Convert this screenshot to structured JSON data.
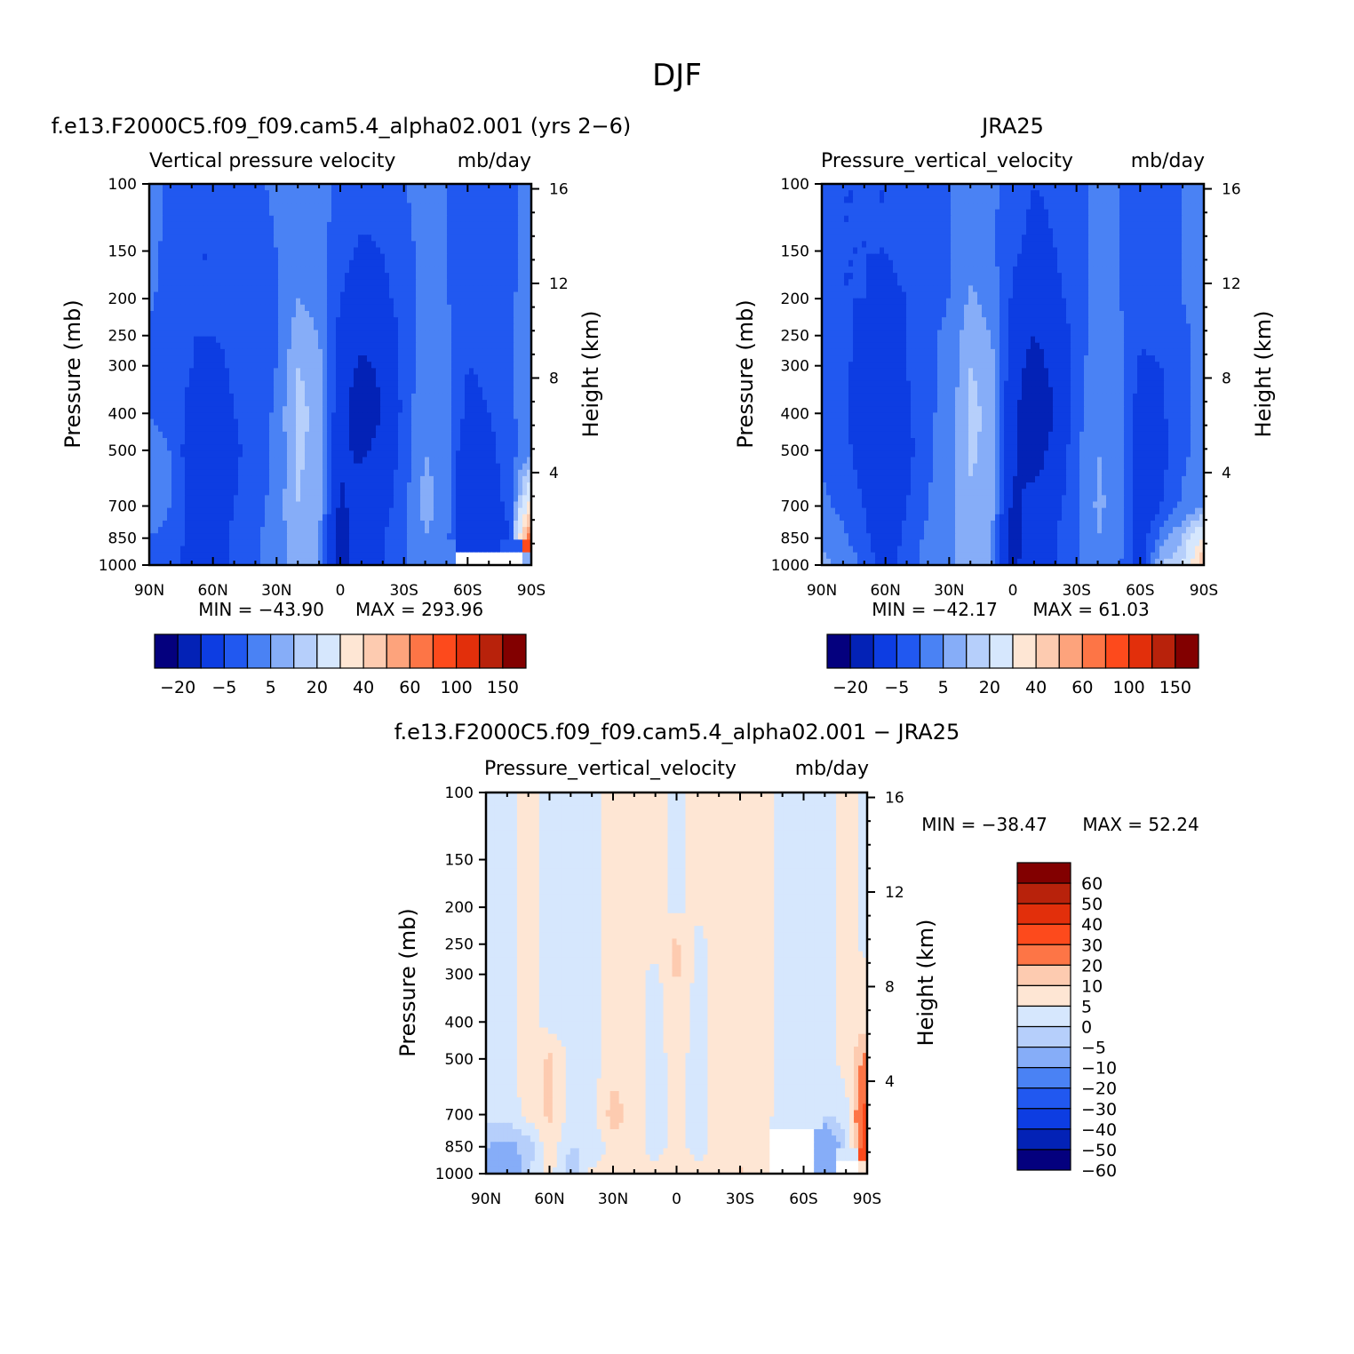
{
  "figure": {
    "title": "DJF"
  },
  "colors": {
    "abs_palette": [
      "#04007e",
      "#0322b6",
      "#0d3de2",
      "#2158f0",
      "#4a82f4",
      "#86adf8",
      "#b6cffb",
      "#d6e7fd",
      "#fee6d4",
      "#fdcbb0",
      "#fda37c",
      "#fd7546",
      "#fd4a1c",
      "#e22f0b",
      "#b8220b",
      "#820000"
    ],
    "diff_palette": [
      "#04007e",
      "#0322b6",
      "#0d3de2",
      "#2158f0",
      "#4a82f4",
      "#86adf8",
      "#b6cffb",
      "#d6e7fd",
      "#fee6d4",
      "#fdcbb0",
      "#fd7546",
      "#fd4a1c",
      "#e22f0b",
      "#b8220b",
      "#820000"
    ],
    "missing": "#ffffff"
  },
  "chart_data": [
    {
      "type": "heatmap",
      "case_title": "f.e13.F2000C5.f09_f09.cam5.4_alpha02.001 (yrs 2−6)",
      "title": "Vertical pressure velocity",
      "units": "mb/day",
      "ylabel": "Pressure (mb)",
      "ylabel_right": "Height (km)",
      "xticks": [
        "90N",
        "60N",
        "30N",
        "0",
        "30S",
        "60S",
        "90S"
      ],
      "yticks": [
        "100",
        "150",
        "200",
        "250",
        "300",
        "400",
        "500",
        "700",
        "850",
        "1000"
      ],
      "yticks_right": [
        "16",
        "12",
        "8",
        "4"
      ],
      "ylim": [
        100,
        1000
      ],
      "yscale": "log",
      "min_label": "MIN = −43.90",
      "max_label": "MAX = 293.96",
      "colorbar_labels": [
        "−20",
        "−5",
        "5",
        "20",
        "40",
        "60",
        "100",
        "150"
      ],
      "lat": [
        90,
        80,
        70,
        60,
        50,
        40,
        30,
        20,
        10,
        0,
        -10,
        -20,
        -30,
        -40,
        -50,
        -60,
        -70,
        -80,
        -90
      ],
      "lev": [
        100,
        150,
        200,
        250,
        300,
        400,
        500,
        700,
        850,
        1000
      ],
      "field": [
        [
          0,
          -8,
          -10,
          -9,
          -7,
          -6,
          -4,
          -3,
          -3,
          -6,
          -8,
          -7,
          -5,
          -4,
          -5,
          -7,
          -8,
          -6,
          -3
        ],
        [
          -2,
          -8,
          -10,
          -10,
          -9,
          -7,
          -5,
          -3,
          -3,
          -8,
          -11,
          -10,
          -6,
          -4,
          -5,
          -6,
          -8,
          -7,
          -2
        ],
        [
          -4,
          -8,
          -10,
          -10,
          -10,
          -8,
          -6,
          0,
          -2,
          -10,
          -14,
          -12,
          -7,
          -4,
          -5,
          -6,
          -7,
          -6,
          -2
        ],
        [
          -6,
          -8,
          -10,
          -10,
          -9,
          -8,
          -6,
          3,
          0,
          -12,
          -18,
          -16,
          -8,
          -3,
          -4,
          -8,
          -8,
          -6,
          -2
        ],
        [
          -5,
          -7,
          -10,
          -12,
          -9,
          -7,
          -5,
          5,
          2,
          -14,
          -22,
          -18,
          -8,
          -2,
          -3,
          -10,
          -9,
          -6,
          -2
        ],
        [
          -5,
          -6,
          -12,
          -14,
          -10,
          -8,
          -4,
          7,
          3,
          -16,
          -28,
          -20,
          -8,
          -1,
          -3,
          -12,
          -10,
          -6,
          -2
        ],
        [
          -4,
          -5,
          -14,
          -15,
          -11,
          -8,
          -4,
          6,
          3,
          -18,
          -22,
          -16,
          -7,
          0,
          -3,
          -16,
          -12,
          -6,
          -4
        ],
        [
          -3,
          -5,
          -12,
          -14,
          -10,
          -7,
          -3,
          5,
          2,
          -22,
          -15,
          -12,
          -7,
          2,
          -2,
          -18,
          -14,
          -8,
          25
        ],
        [
          -5,
          -6,
          -12,
          -13,
          -9,
          -6,
          -2,
          3,
          1,
          -26,
          -14,
          -10,
          -6,
          0,
          -3,
          -20,
          -16,
          -10,
          60
        ],
        [
          -8,
          -8,
          -14,
          -12,
          -9,
          -6,
          -3,
          2,
          0,
          -24,
          -12,
          -10,
          -6,
          -2,
          -4,
          null,
          null,
          null,
          0
        ]
      ]
    },
    {
      "type": "heatmap",
      "case_title": "JRA25",
      "title": "Pressure_vertical_velocity",
      "units": "mb/day",
      "ylabel": "Pressure (mb)",
      "ylabel_right": "Height (km)",
      "xticks": [
        "90N",
        "60N",
        "30N",
        "0",
        "30S",
        "60S",
        "90S"
      ],
      "yticks": [
        "100",
        "150",
        "200",
        "250",
        "300",
        "400",
        "500",
        "700",
        "850",
        "1000"
      ],
      "yticks_right": [
        "16",
        "12",
        "8",
        "4"
      ],
      "ylim": [
        100,
        1000
      ],
      "yscale": "log",
      "min_label": "MIN = −42.17",
      "max_label": "MAX =   61.03",
      "colorbar_labels": [
        "−20",
        "−5",
        "5",
        "20",
        "40",
        "60",
        "100",
        "150"
      ],
      "lat": [
        90,
        80,
        70,
        60,
        50,
        40,
        30,
        20,
        10,
        0,
        -10,
        -20,
        -30,
        -40,
        -50,
        -60,
        -70,
        -80,
        -90
      ],
      "lev": [
        100,
        150,
        200,
        250,
        300,
        400,
        500,
        700,
        850,
        1000
      ],
      "field": [
        [
          -8,
          -10,
          -10,
          -10,
          -8,
          -7,
          -5,
          -3,
          -4,
          -7,
          -10,
          -9,
          -6,
          -4,
          -5,
          -7,
          -8,
          -5,
          -3
        ],
        [
          -8,
          -10,
          -10,
          -10,
          -9,
          -7,
          -5,
          -2,
          -4,
          -9,
          -12,
          -10,
          -6,
          -4,
          -5,
          -7,
          -8,
          -5,
          -3
        ],
        [
          -8,
          -10,
          -10,
          -11,
          -10,
          -7,
          -5,
          1,
          -2,
          -11,
          -15,
          -12,
          -7,
          -4,
          -5,
          -7,
          -8,
          -5,
          -3
        ],
        [
          -7,
          -9,
          -11,
          -12,
          -10,
          -6,
          -4,
          3,
          0,
          -13,
          -20,
          -15,
          -8,
          -3,
          -4,
          -9,
          -9,
          -6,
          -3
        ],
        [
          -7,
          -9,
          -12,
          -14,
          -10,
          -6,
          -4,
          5,
          2,
          -15,
          -24,
          -17,
          -7,
          -2,
          -3,
          -11,
          -10,
          -6,
          -3
        ],
        [
          -7,
          -9,
          -14,
          -17,
          -11,
          -6,
          -3,
          7,
          3,
          -17,
          -30,
          -20,
          -7,
          -1,
          -3,
          -13,
          -11,
          -6,
          -3
        ],
        [
          -6,
          -8,
          -13,
          -18,
          -12,
          -6,
          -3,
          6,
          3,
          -18,
          -26,
          -16,
          -6,
          0,
          -2,
          -14,
          -12,
          -6,
          -3
        ],
        [
          -4,
          -6,
          -10,
          -18,
          -10,
          -5,
          -2,
          4,
          2,
          -22,
          -16,
          -12,
          -6,
          1,
          -2,
          -15,
          -10,
          -4,
          -2
        ],
        [
          -1,
          -4,
          -8,
          -16,
          -8,
          -4,
          -1,
          3,
          1,
          -26,
          -14,
          -10,
          -6,
          0,
          -3,
          -14,
          -3,
          5,
          20
        ],
        [
          2,
          -2,
          -6,
          -12,
          -7,
          -3,
          -1,
          2,
          0,
          -22,
          -12,
          -10,
          -6,
          -2,
          -4,
          -14,
          5,
          10,
          40
        ]
      ]
    },
    {
      "type": "heatmap",
      "case_title": "f.e13.F2000C5.f09_f09.cam5.4_alpha02.001 − JRA25",
      "title": "Pressure_vertical_velocity",
      "units": "mb/day",
      "ylabel": "Pressure (mb)",
      "ylabel_right": "Height (km)",
      "xticks": [
        "90N",
        "60N",
        "30N",
        "0",
        "30S",
        "60S",
        "90S"
      ],
      "yticks": [
        "100",
        "150",
        "200",
        "250",
        "300",
        "400",
        "500",
        "700",
        "850",
        "1000"
      ],
      "yticks_right": [
        "16",
        "12",
        "8",
        "4"
      ],
      "ylim": [
        100,
        1000
      ],
      "yscale": "log",
      "min_label": "MIN = −38.47",
      "max_label": "MAX =   52.24",
      "colorbar_labels": [
        "60",
        "50",
        "40",
        "30",
        "20",
        "10",
        "5",
        "0",
        "−5",
        "−10",
        "−20",
        "−30",
        "−40",
        "−50",
        "−60"
      ],
      "lat": [
        90,
        80,
        70,
        60,
        50,
        40,
        30,
        20,
        10,
        0,
        -10,
        -20,
        -30,
        -40,
        -50,
        -60,
        -70,
        -80,
        -90
      ],
      "lev": [
        100,
        150,
        200,
        250,
        300,
        400,
        500,
        700,
        850,
        1000
      ],
      "field": [
        [
          -2,
          -2,
          2,
          -2,
          -2,
          -2,
          2,
          2,
          2,
          -2,
          2,
          2,
          2,
          2,
          -2,
          -2,
          -2,
          2,
          -2
        ],
        [
          -2,
          -2,
          2,
          -2,
          -2,
          -2,
          2,
          2,
          2,
          -2,
          2,
          2,
          2,
          2,
          -2,
          -2,
          -2,
          2,
          -2
        ],
        [
          -2,
          -2,
          2,
          -2,
          -2,
          -2,
          2,
          2,
          2,
          -2,
          2,
          2,
          2,
          2,
          -2,
          -2,
          -2,
          2,
          -2
        ],
        [
          -2,
          -2,
          2,
          -2,
          -2,
          -2,
          2,
          2,
          2,
          6,
          -2,
          2,
          2,
          2,
          -2,
          -2,
          -2,
          2,
          -2
        ],
        [
          -2,
          -2,
          2,
          -2,
          -2,
          -2,
          2,
          2,
          -2,
          6,
          -2,
          2,
          2,
          2,
          -2,
          -2,
          -2,
          2,
          3
        ],
        [
          -2,
          -2,
          2,
          -2,
          -2,
          -2,
          2,
          2,
          -2,
          3,
          -2,
          2,
          2,
          2,
          -2,
          -2,
          -2,
          2,
          3
        ],
        [
          -2,
          -2,
          2,
          6,
          -2,
          -2,
          2,
          2,
          -2,
          2,
          -2,
          2,
          2,
          2,
          -2,
          -2,
          -2,
          2,
          12
        ],
        [
          -3,
          -3,
          2,
          6,
          -2,
          -2,
          8,
          2,
          -2,
          2,
          -2,
          2,
          2,
          2,
          -2,
          -3,
          -5,
          -3,
          25
        ],
        [
          -10,
          -12,
          -8,
          3,
          -5,
          -5,
          3,
          2,
          -2,
          2,
          -2,
          2,
          2,
          2,
          null,
          null,
          -20,
          -5,
          25
        ],
        [
          -20,
          -18,
          -6,
          2,
          -8,
          2,
          2,
          2,
          2,
          2,
          2,
          2,
          6,
          2,
          null,
          null,
          -20,
          null,
          2
        ]
      ]
    }
  ]
}
